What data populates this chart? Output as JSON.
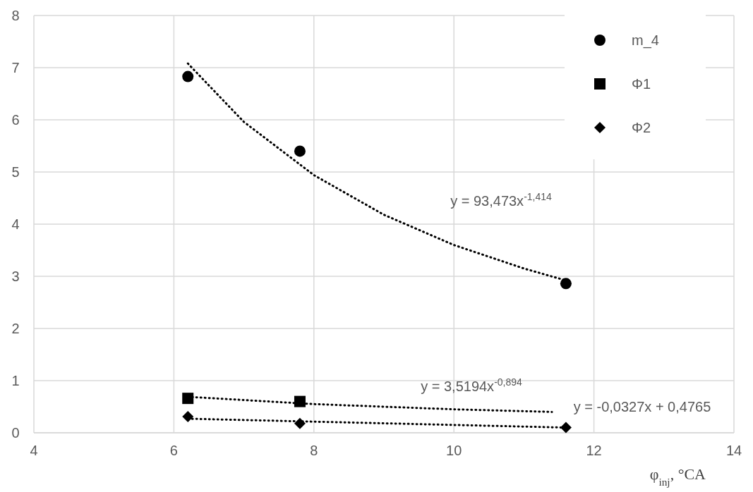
{
  "chart_data": {
    "type": "scatter",
    "xlabel": "φ$_{inj}$, °CA",
    "xlim": [
      4,
      14
    ],
    "xticks": [
      4,
      6,
      8,
      10,
      12,
      14
    ],
    "ylim": [
      0,
      8
    ],
    "yticks": [
      0,
      1,
      2,
      3,
      4,
      5,
      6,
      7,
      8
    ],
    "grid": true,
    "legend": "top right",
    "series": [
      {
        "name": "m_4",
        "marker": "circle",
        "color": "#000000",
        "x": [
          6.2,
          7.8,
          11.6
        ],
        "values": [
          6.83,
          5.4,
          2.86
        ]
      },
      {
        "name": "Φ1",
        "marker": "square",
        "color": "#000000",
        "x": [
          6.2,
          7.8
        ],
        "values": [
          0.66,
          0.6
        ]
      },
      {
        "name": "Φ2",
        "marker": "diamond",
        "color": "#000000",
        "x": [
          6.2,
          7.8,
          11.6
        ],
        "values": [
          0.31,
          0.18,
          0.1
        ]
      },
      {
        "type": "line",
        "line_style": "dotted",
        "marker": "none",
        "color": "#000000",
        "x": [
          6.2,
          7,
          8,
          9,
          10,
          11,
          11.6
        ],
        "values": [
          7.08,
          5.96,
          4.94,
          4.18,
          3.6,
          3.15,
          2.92
        ]
      },
      {
        "type": "line",
        "line_style": "dotted",
        "marker": "none",
        "color": "#000000",
        "x": [
          6.2,
          8,
          10,
          11.4
        ],
        "values": [
          0.69,
          0.55,
          0.45,
          0.4
        ]
      },
      {
        "type": "line",
        "line_style": "dotted",
        "marker": "none",
        "color": "#000000",
        "x": [
          6.2,
          11.6
        ],
        "values": [
          0.27,
          0.1
        ]
      }
    ],
    "annotations": [
      "y = 93,473x$^{-1,414}$",
      "y = 3,5194x$^{-0,894}$",
      "y = -0,0327x + 0,4765"
    ]
  }
}
